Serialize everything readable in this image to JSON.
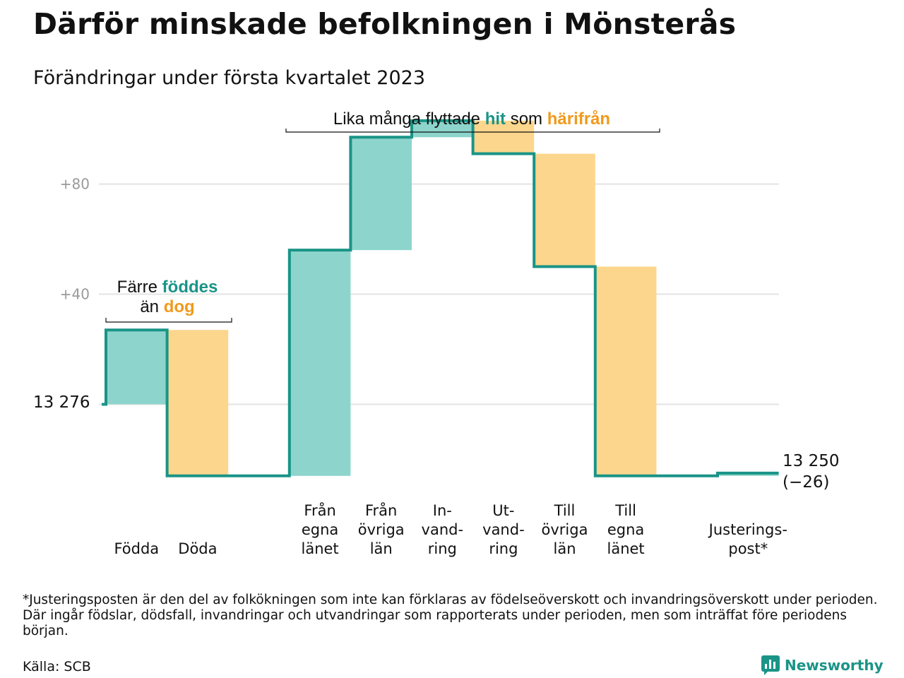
{
  "title": "Därför minskade befolkningen i Mönsterås",
  "subtitle": "Förändringar under första kvartalet 2023",
  "colors": {
    "increase": "#8dd5cc",
    "decrease": "#fbd68c",
    "line": "#1a9487",
    "teal_text": "#1a9487",
    "orange_text": "#f09a1c",
    "grid": "#e3e3e3",
    "tick": "#9a9a9a"
  },
  "annotations": {
    "birth_death": {
      "line1_plain": "Färre ",
      "line1_teal": "föddes",
      "line2_plain": "än ",
      "line2_orange": "dog"
    },
    "migration": {
      "plain1": "Lika många flyttade ",
      "teal": "hit",
      "plain2": " som ",
      "orange": "härifrån"
    }
  },
  "chart_data": {
    "type": "waterfall",
    "start_value": 13276,
    "start_label": "13 276",
    "end_value": 13250,
    "end_label": "13 250",
    "end_change_label": "(−26)",
    "y_ticks": [
      {
        "value": 40,
        "label": "+40"
      },
      {
        "value": 80,
        "label": "+80"
      }
    ],
    "y_range": [
      -34,
      104
    ],
    "grid": true,
    "steps": [
      {
        "label": [
          "Födda"
        ],
        "value": 27
      },
      {
        "label": [
          "Döda"
        ],
        "value": -53
      },
      {
        "label": [
          ""
        ],
        "value": 0
      },
      {
        "label": [
          "Från",
          "egna",
          "länet"
        ],
        "value": 82
      },
      {
        "label": [
          "Från",
          "övriga",
          "län"
        ],
        "value": 41
      },
      {
        "label": [
          "In-",
          "vand-",
          "ring"
        ],
        "value": 6
      },
      {
        "label": [
          "Ut-",
          "vand-",
          "ring"
        ],
        "value": -12
      },
      {
        "label": [
          "Till",
          "övriga",
          "län"
        ],
        "value": -41
      },
      {
        "label": [
          "Till",
          "egna",
          "länet"
        ],
        "value": -76
      },
      {
        "label": [
          ""
        ],
        "value": 0
      },
      {
        "label": [
          "Justerings-",
          "post*"
        ],
        "value": 1
      }
    ]
  },
  "footnote": "*Justeringsposten är den del av folkökningen som inte kan förklaras av födelseöverskott och invandringsöverskott under perioden. Där ingår födslar, dödsfall, invandringar och utvandringar som rapporterats under perioden, men som inträffat före periodens början.",
  "source": "Källa: SCB",
  "brand": {
    "name": "Newsworthy",
    "icon": "newsworthy-logo-icon"
  }
}
